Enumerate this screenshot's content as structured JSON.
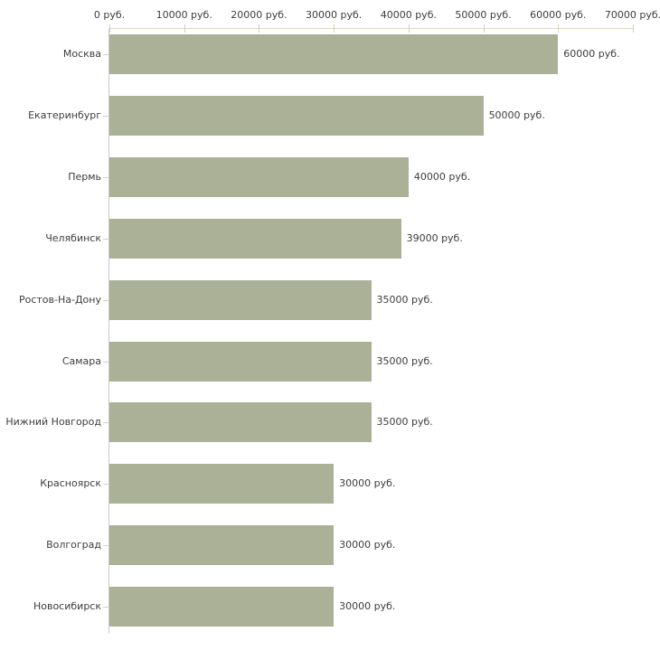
{
  "chart_data": {
    "type": "bar",
    "orientation": "horizontal",
    "title": "",
    "xlabel": "",
    "ylabel": "",
    "unit": "руб.",
    "xlim": [
      0,
      70000
    ],
    "grid": false,
    "legend": "none",
    "x_ticks": [
      0,
      10000,
      20000,
      30000,
      40000,
      50000,
      60000,
      70000
    ],
    "x_tick_labels": [
      "0 руб.",
      "10000 руб.",
      "20000 руб.",
      "30000 руб.",
      "40000 руб.",
      "50000 руб.",
      "60000 руб.",
      "70000 руб."
    ],
    "categories": [
      "Москва",
      "Екатеринбург",
      "Пермь",
      "Челябинск",
      "Ростов-На-Дону",
      "Самара",
      "Нижний Новгород",
      "Красноярск",
      "Волгоград",
      "Новосибирск"
    ],
    "values": [
      60000,
      50000,
      40000,
      39000,
      35000,
      35000,
      35000,
      30000,
      30000,
      30000
    ],
    "value_labels": [
      "60000 руб.",
      "50000 руб.",
      "40000 руб.",
      "39000 руб.",
      "35000 руб.",
      "35000 руб.",
      "35000 руб.",
      "30000 руб.",
      "30000 руб.",
      "30000 руб."
    ],
    "colors": {
      "bar_fill": "#abb197",
      "x_axis_line": "#ddd9c4",
      "x_axis_tick": "#d5d1b8",
      "y_axis_line": "#c9c9c9",
      "category_tick": "#d5d1b8",
      "text": "#3d3d3d",
      "background": "#ffffff"
    }
  }
}
